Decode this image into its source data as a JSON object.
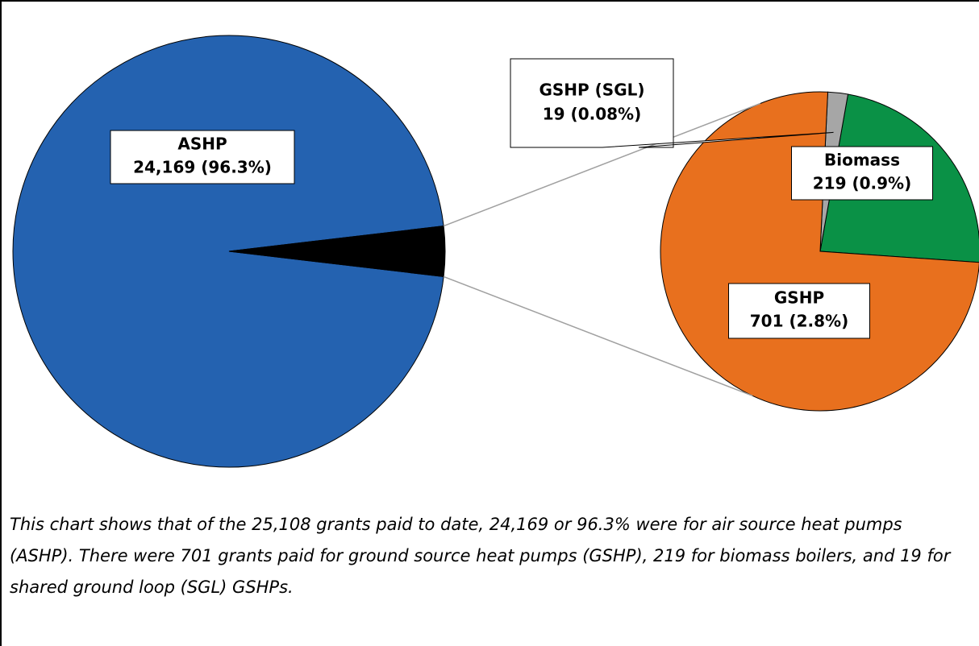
{
  "chart_data": {
    "type": "pie-of-pie",
    "categories": [
      "ASHP",
      "GSHP",
      "Biomass",
      "GSHP (SGL)"
    ],
    "values": [
      24169,
      701,
      219,
      19
    ],
    "value_labels": [
      "24,169 (96.3%)",
      "701 (2.8%)",
      "219 (0.9%)",
      "19 (0.08%)"
    ],
    "colors": [
      "#2462b0",
      "#e8701e",
      "#0a9146",
      "#a6a6a6"
    ],
    "caption": "This chart shows that of the 25,108 grants paid to date, 24,169 or 96.3% were for air source heat pumps (ASHP). There were 701 grants paid for ground source heat pumps (GSHP), 219 for biomass boilers, and 19 for shared ground loop (SGL) GSHPs."
  }
}
